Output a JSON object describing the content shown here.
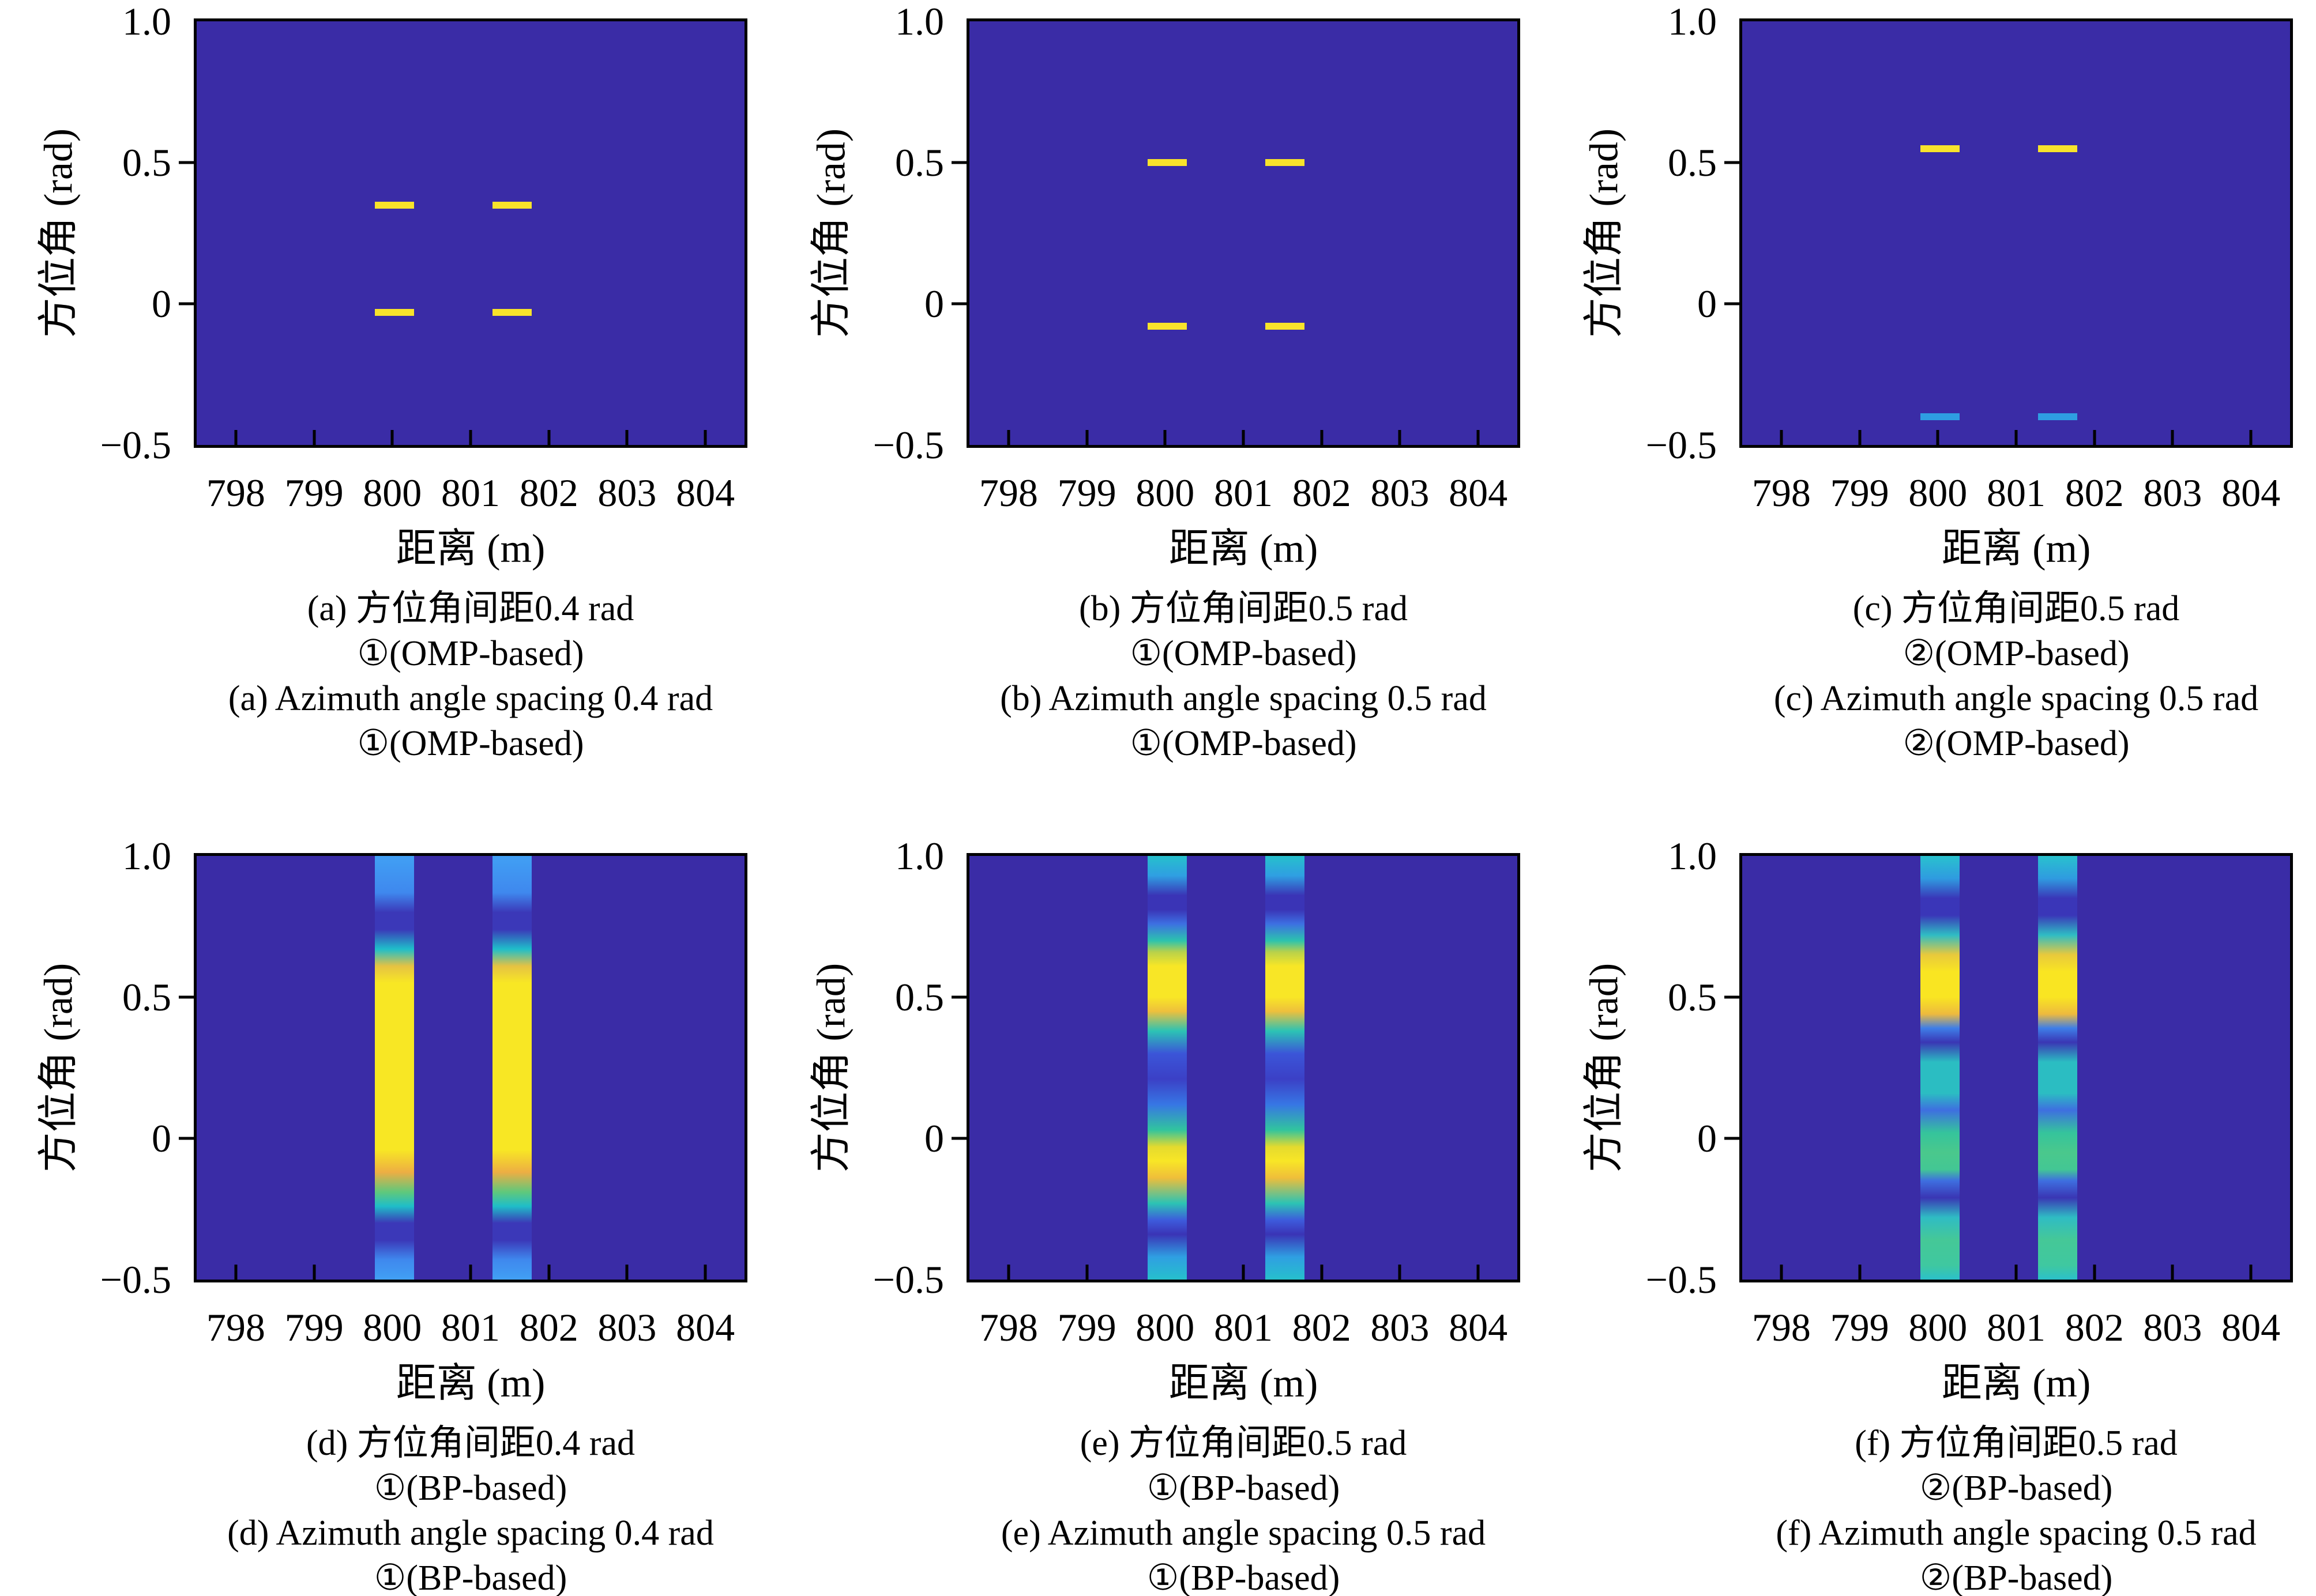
{
  "figure": {
    "background": "#FFFFFF",
    "type": "2x3 subplot grid of SAR imaging heatmaps"
  },
  "colors": {
    "heatmap_background": "#3A2CA6",
    "axis": "#000000",
    "target_strong": "#F8E32B",
    "target_weak": "#2E9EE2"
  },
  "axes": {
    "xlabel": "距离 (m)",
    "ylabel": "方位角 (rad)",
    "x_range": [
      797.5,
      804.5
    ],
    "y_range": [
      -0.5,
      1.0
    ],
    "grid": false,
    "x_ticks": [
      {
        "value": 798,
        "label": "798"
      },
      {
        "value": 799,
        "label": "799"
      },
      {
        "value": 800,
        "label": "800"
      },
      {
        "value": 801,
        "label": "801"
      },
      {
        "value": 802,
        "label": "802"
      },
      {
        "value": 803,
        "label": "803"
      },
      {
        "value": 804,
        "label": "804"
      }
    ],
    "y_ticks": [
      {
        "value": 1.0,
        "label": "1.0"
      },
      {
        "value": 0.5,
        "label": "0.5"
      },
      {
        "value": 0.0,
        "label": "0"
      },
      {
        "value": -0.5,
        "label": "−0.5"
      }
    ]
  },
  "chart_data": [
    {
      "panel": "a",
      "type": "heatmap",
      "method": "OMP-based",
      "scene": "①",
      "azimuth_spacing_rad": 0.4,
      "caption_lines": [
        "(a) 方位角间距0.4 rad",
        "①(OMP-based)",
        "(a) Azimuth angle spacing 0.4 rad",
        "①(OMP-based)"
      ],
      "detections": [
        {
          "range_m": [
            799.78,
            800.28
          ],
          "azimuth_rad": 0.35,
          "color": "#F8E32B"
        },
        {
          "range_m": [
            801.28,
            801.78
          ],
          "azimuth_rad": 0.35,
          "color": "#F8E32B"
        },
        {
          "range_m": [
            799.78,
            800.28
          ],
          "azimuth_rad": -0.03,
          "color": "#F8E32B"
        },
        {
          "range_m": [
            801.28,
            801.78
          ],
          "azimuth_rad": -0.03,
          "color": "#F8E32B"
        }
      ]
    },
    {
      "panel": "b",
      "type": "heatmap",
      "method": "OMP-based",
      "scene": "①",
      "azimuth_spacing_rad": 0.5,
      "caption_lines": [
        "(b) 方位角间距0.5 rad",
        "①(OMP-based)",
        "(b) Azimuth angle spacing 0.5 rad",
        "①(OMP-based)"
      ],
      "detections": [
        {
          "range_m": [
            799.78,
            800.28
          ],
          "azimuth_rad": 0.5,
          "color": "#F8E32B"
        },
        {
          "range_m": [
            801.28,
            801.78
          ],
          "azimuth_rad": 0.5,
          "color": "#F8E32B"
        },
        {
          "range_m": [
            799.78,
            800.28
          ],
          "azimuth_rad": -0.08,
          "color": "#F8E32B"
        },
        {
          "range_m": [
            801.28,
            801.78
          ],
          "azimuth_rad": -0.08,
          "color": "#F8E32B"
        }
      ]
    },
    {
      "panel": "c",
      "type": "heatmap",
      "method": "OMP-based",
      "scene": "②",
      "azimuth_spacing_rad": 0.5,
      "caption_lines": [
        "(c) 方位角间距0.5 rad",
        "②(OMP-based)",
        "(c) Azimuth angle spacing 0.5 rad",
        "②(OMP-based)"
      ],
      "detections": [
        {
          "range_m": [
            799.78,
            800.28
          ],
          "azimuth_rad": 0.55,
          "color": "#F8E32B"
        },
        {
          "range_m": [
            801.28,
            801.78
          ],
          "azimuth_rad": 0.55,
          "color": "#F8E32B"
        },
        {
          "range_m": [
            799.78,
            800.28
          ],
          "azimuth_rad": -0.4,
          "color": "#2E9EE2"
        },
        {
          "range_m": [
            801.28,
            801.78
          ],
          "azimuth_rad": -0.4,
          "color": "#2E9EE2"
        }
      ]
    },
    {
      "panel": "d",
      "type": "heatmap",
      "method": "BP-based",
      "scene": "①",
      "azimuth_spacing_rad": 0.4,
      "caption_lines": [
        "(d) 方位角间距0.4 rad",
        "①(BP-based)",
        "(d) Azimuth angle spacing 0.4 rad",
        "①(BP-based)"
      ],
      "stripes": {
        "range_intervals_m": [
          [
            799.78,
            800.28
          ],
          [
            801.28,
            801.78
          ]
        ],
        "azimuth_profile": [
          {
            "azimuth_rad": 1.0,
            "color": "#41A0F4"
          },
          {
            "azimuth_rad": 0.87,
            "color": "#3F88EE"
          },
          {
            "azimuth_rad": 0.8,
            "color": "#3B38B8"
          },
          {
            "azimuth_rad": 0.74,
            "color": "#3B38B8"
          },
          {
            "azimuth_rad": 0.67,
            "color": "#1FBECA"
          },
          {
            "azimuth_rad": 0.61,
            "color": "#E5C243"
          },
          {
            "azimuth_rad": 0.55,
            "color": "#F8E724"
          },
          {
            "azimuth_rad": -0.04,
            "color": "#F8E724"
          },
          {
            "azimuth_rad": -0.12,
            "color": "#EDAE43"
          },
          {
            "azimuth_rad": -0.19,
            "color": "#5FC87C"
          },
          {
            "azimuth_rad": -0.24,
            "color": "#1FBEC8"
          },
          {
            "azimuth_rad": -0.3,
            "color": "#3B38B8"
          },
          {
            "azimuth_rad": -0.36,
            "color": "#3B38B8"
          },
          {
            "azimuth_rad": -0.43,
            "color": "#3F88EE"
          },
          {
            "azimuth_rad": -0.5,
            "color": "#41A0F4"
          }
        ]
      }
    },
    {
      "panel": "e",
      "type": "heatmap",
      "method": "BP-based",
      "scene": "①",
      "azimuth_spacing_rad": 0.5,
      "caption_lines": [
        "(e) 方位角间距0.5 rad",
        "①(BP-based)",
        "(e) Azimuth angle spacing 0.5 rad",
        "①(BP-based)"
      ],
      "stripes": {
        "range_intervals_m": [
          [
            799.78,
            800.28
          ],
          [
            801.28,
            801.78
          ]
        ],
        "azimuth_profile": [
          {
            "azimuth_rad": 1.0,
            "color": "#26C0CC"
          },
          {
            "azimuth_rad": 0.93,
            "color": "#2F9FE2"
          },
          {
            "azimuth_rad": 0.86,
            "color": "#3A34B6"
          },
          {
            "azimuth_rad": 0.81,
            "color": "#3A34B6"
          },
          {
            "azimuth_rad": 0.76,
            "color": "#3D6FE2"
          },
          {
            "azimuth_rad": 0.7,
            "color": "#2CC3AE"
          },
          {
            "azimuth_rad": 0.66,
            "color": "#B8D14B"
          },
          {
            "azimuth_rad": 0.61,
            "color": "#F8E626"
          },
          {
            "azimuth_rad": 0.5,
            "color": "#F8E626"
          },
          {
            "azimuth_rad": 0.45,
            "color": "#EEC03C"
          },
          {
            "azimuth_rad": 0.38,
            "color": "#2CC3B4"
          },
          {
            "azimuth_rad": 0.3,
            "color": "#3B55D8"
          },
          {
            "azimuth_rad": 0.21,
            "color": "#3B40C6"
          },
          {
            "azimuth_rad": 0.12,
            "color": "#3776E4"
          },
          {
            "azimuth_rad": 0.03,
            "color": "#31C49E"
          },
          {
            "azimuth_rad": -0.03,
            "color": "#E4DA2E"
          },
          {
            "azimuth_rad": -0.08,
            "color": "#F8E626"
          },
          {
            "azimuth_rad": -0.14,
            "color": "#EFBE3A"
          },
          {
            "azimuth_rad": -0.23,
            "color": "#2CC3B4"
          },
          {
            "azimuth_rad": -0.29,
            "color": "#3D5BDC"
          },
          {
            "azimuth_rad": -0.34,
            "color": "#3A34B6"
          },
          {
            "azimuth_rad": -0.42,
            "color": "#2F9FE2"
          },
          {
            "azimuth_rad": -0.5,
            "color": "#26C0CC"
          }
        ]
      }
    },
    {
      "panel": "f",
      "type": "heatmap",
      "method": "BP-based",
      "scene": "②",
      "azimuth_spacing_rad": 0.5,
      "caption_lines": [
        "(f) 方位角间距0.5 rad",
        "②(BP-based)",
        "(f) Azimuth angle spacing 0.5 rad",
        "②(BP-based)"
      ],
      "stripes": {
        "range_intervals_m": [
          [
            799.78,
            800.28
          ],
          [
            801.28,
            801.78
          ]
        ],
        "azimuth_profile": [
          {
            "azimuth_rad": 1.0,
            "color": "#29C2CE"
          },
          {
            "azimuth_rad": 0.92,
            "color": "#2F9BE0"
          },
          {
            "azimuth_rad": 0.85,
            "color": "#3A36B8"
          },
          {
            "azimuth_rad": 0.79,
            "color": "#3A36B8"
          },
          {
            "azimuth_rad": 0.72,
            "color": "#2FBCC4"
          },
          {
            "azimuth_rad": 0.65,
            "color": "#E8C93C"
          },
          {
            "azimuth_rad": 0.59,
            "color": "#F9E522"
          },
          {
            "azimuth_rad": 0.5,
            "color": "#F9E522"
          },
          {
            "azimuth_rad": 0.44,
            "color": "#EDBA3E"
          },
          {
            "azimuth_rad": 0.39,
            "color": "#3E7EE8"
          },
          {
            "azimuth_rad": 0.34,
            "color": "#3A36B4"
          },
          {
            "azimuth_rad": 0.27,
            "color": "#2BBDC2"
          },
          {
            "azimuth_rad": 0.16,
            "color": "#2BBDC2"
          },
          {
            "azimuth_rad": 0.1,
            "color": "#3E6FE0"
          },
          {
            "azimuth_rad": 0.02,
            "color": "#35C49C"
          },
          {
            "azimuth_rad": -0.05,
            "color": "#4AC88C"
          },
          {
            "azimuth_rad": -0.11,
            "color": "#43C794"
          },
          {
            "azimuth_rad": -0.15,
            "color": "#3E6FE0"
          },
          {
            "azimuth_rad": -0.21,
            "color": "#3A36B4"
          },
          {
            "azimuth_rad": -0.28,
            "color": "#2FBCC4"
          },
          {
            "azimuth_rad": -0.36,
            "color": "#45C897"
          },
          {
            "azimuth_rad": -0.45,
            "color": "#3FC8A0"
          },
          {
            "azimuth_rad": -0.5,
            "color": "#2BC0CA"
          }
        ]
      }
    }
  ]
}
